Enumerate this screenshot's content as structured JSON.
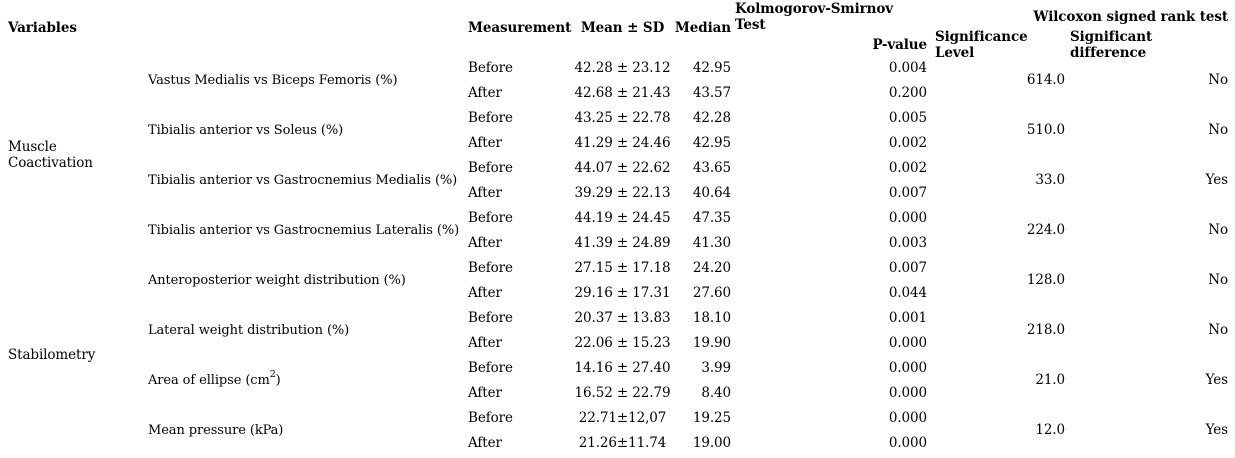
{
  "header": {
    "variables": "Variables",
    "measurement": "Measurement",
    "mean_sd": "Mean ± SD",
    "median": "Median",
    "ks_test": "Kolmogorov-Smirnov Test",
    "p_value": "P-value",
    "wilcoxon": "Wilcoxon signed rank test",
    "significance_level": "Significance Level",
    "significant_difference": "Significant difference"
  },
  "measurements": {
    "before": "Before",
    "after": "After"
  },
  "groups": [
    {
      "label": "Muscle Coactivation"
    },
    {
      "label": "Stabilometry"
    }
  ],
  "rows": [
    {
      "variable": "Vastus Medialis vs Biceps Femoris (%)",
      "sup": "",
      "suffix": "",
      "before": {
        "mean_sd": "42.28 ± 23.12",
        "median": "42.95",
        "p": "0.004"
      },
      "after": {
        "mean_sd": "42.68 ± 21.43",
        "median": "43.57",
        "p": "0.200"
      },
      "sig_level": "614.0",
      "sig_diff": "No"
    },
    {
      "variable": "Tibialis anterior vs Soleus (%)",
      "sup": "",
      "suffix": "",
      "before": {
        "mean_sd": "43.25 ± 22.78",
        "median": "42.28",
        "p": "0.005"
      },
      "after": {
        "mean_sd": "41.29 ± 24.46",
        "median": "42.95",
        "p": "0.002"
      },
      "sig_level": "510.0",
      "sig_diff": "No"
    },
    {
      "variable": "Tibialis anterior vs Gastrocnemius Medialis (%)",
      "sup": "",
      "suffix": "",
      "before": {
        "mean_sd": "44.07 ± 22.62",
        "median": "43.65",
        "p": "0.002"
      },
      "after": {
        "mean_sd": "39.29 ± 22.13",
        "median": "40.64",
        "p": "0.007"
      },
      "sig_level": "33.0",
      "sig_diff": "Yes"
    },
    {
      "variable": "Tibialis anterior vs Gastrocnemius Lateralis (%)",
      "sup": "",
      "suffix": "",
      "before": {
        "mean_sd": "44.19 ± 24.45",
        "median": "47.35",
        "p": "0.000"
      },
      "after": {
        "mean_sd": "41.39 ± 24.89",
        "median": "41.30",
        "p": "0.003"
      },
      "sig_level": "224.0",
      "sig_diff": "No"
    },
    {
      "variable": "Anteroposterior weight distribution (%)",
      "sup": "",
      "suffix": "",
      "before": {
        "mean_sd": "27.15 ± 17.18",
        "median": "24.20",
        "p": "0.007"
      },
      "after": {
        "mean_sd": "29.16 ± 17.31",
        "median": "27.60",
        "p": "0.044"
      },
      "sig_level": "128.0",
      "sig_diff": "No"
    },
    {
      "variable": "Lateral weight distribution (%)",
      "sup": "",
      "suffix": "",
      "before": {
        "mean_sd": "20.37 ± 13.83",
        "median": "18.10",
        "p": "0.001"
      },
      "after": {
        "mean_sd": "22.06 ± 15.23",
        "median": "19.90",
        "p": "0.000"
      },
      "sig_level": "218.0",
      "sig_diff": "No"
    },
    {
      "variable": "Area of ellipse (cm",
      "sup": "2",
      "suffix": ")",
      "before": {
        "mean_sd": "14.16 ± 27.40",
        "median": "3.99",
        "p": "0.000"
      },
      "after": {
        "mean_sd": "16.52 ± 22.79",
        "median": "8.40",
        "p": "0.000"
      },
      "sig_level": "21.0",
      "sig_diff": "Yes"
    },
    {
      "variable": "Mean pressure (kPa)",
      "sup": "",
      "suffix": "",
      "before": {
        "mean_sd": "22.71±12,07",
        "median": "19.25",
        "p": "0.000"
      },
      "after": {
        "mean_sd": "21.26±11.74",
        "median": "19.00",
        "p": "0.000"
      },
      "sig_level": "12.0",
      "sig_diff": "Yes"
    }
  ]
}
